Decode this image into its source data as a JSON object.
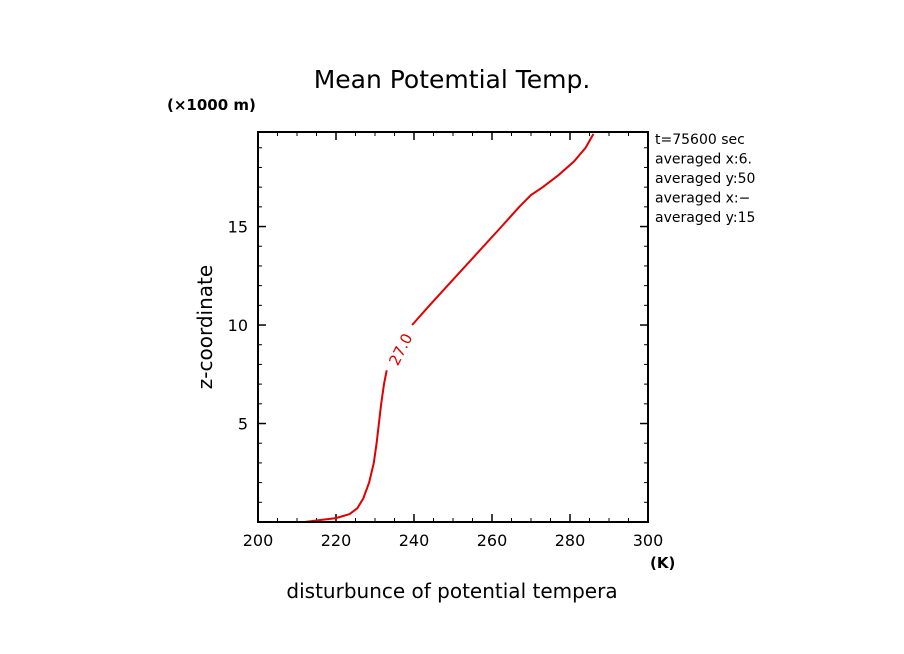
{
  "chart_data": {
    "type": "line",
    "title": "Mean Potemtial Temp.",
    "xlabel": "disturbunce of potential tempera",
    "ylabel": "z-coordinate",
    "x_unit": "(K)",
    "y_unit": "(×1000 m)",
    "xlim": [
      200,
      300
    ],
    "ylim": [
      0,
      19.8
    ],
    "xticks": [
      200,
      220,
      240,
      260,
      280,
      300
    ],
    "yticks": [
      5,
      10,
      15
    ],
    "xtick_labels": [
      "200",
      "220",
      "240",
      "260",
      "280",
      "300"
    ],
    "ytick_labels": [
      "5",
      "10",
      "15"
    ],
    "annotations": [
      "t=75600 sec",
      "averaged  x:6.",
      "averaged  y:50",
      "averaged  x:−",
      "averaged  y:15"
    ],
    "series": [
      {
        "name": "27.0",
        "color": "#e00000",
        "label": "27.0",
        "x": [
          212,
          216,
          220,
          223.5,
          225.5,
          227,
          228.5,
          229.7,
          230.4,
          231,
          231.6,
          232.3,
          233,
          233.8,
          235,
          236.5,
          238,
          239.5,
          244,
          250,
          256,
          262,
          267,
          270,
          273,
          277,
          281,
          284,
          286
        ],
        "y": [
          0.0,
          0.1,
          0.2,
          0.4,
          0.7,
          1.2,
          2.0,
          3.0,
          4.0,
          5.0,
          6.0,
          7.0,
          7.7,
          8.0,
          8.3,
          8.8,
          9.4,
          10.0,
          11.0,
          12.3,
          13.6,
          14.9,
          16.0,
          16.6,
          17.0,
          17.6,
          18.3,
          19.0,
          19.7
        ]
      }
    ]
  }
}
